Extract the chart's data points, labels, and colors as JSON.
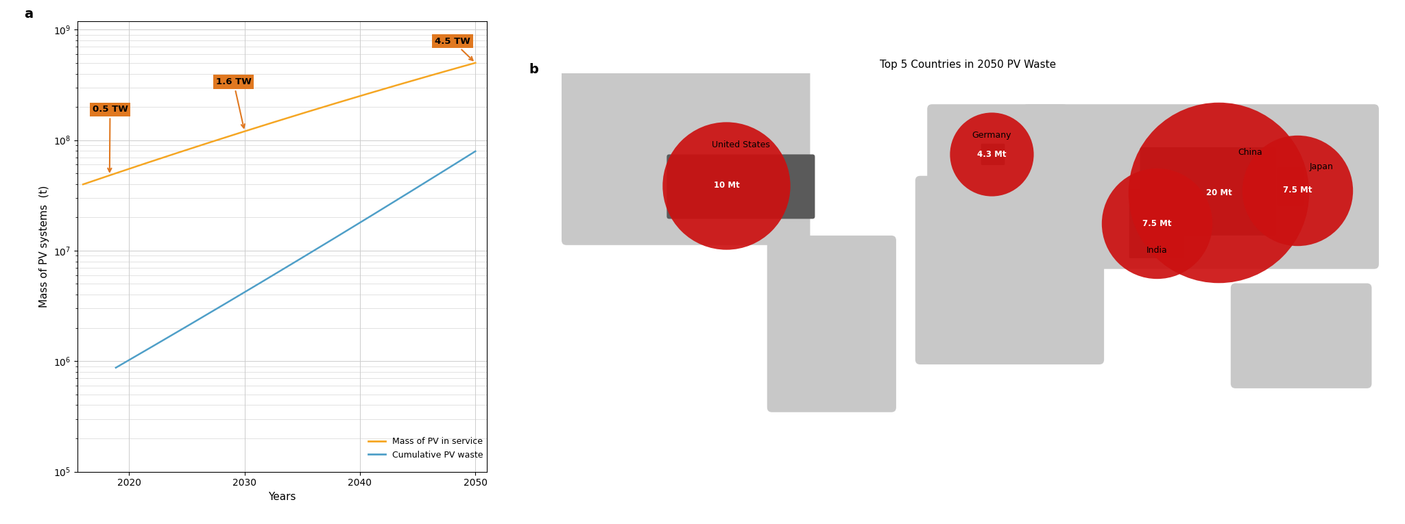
{
  "panel_a": {
    "xlabel": "Years",
    "ylabel": "Mass of PV systems  (t)",
    "pv_service_color": "#f5a623",
    "pv_waste_color": "#4f9fc8",
    "pv_service_label": "Mass of PV in service",
    "pv_waste_label": "Cumulative PV waste",
    "xticks": [
      2020,
      2030,
      2040,
      2050
    ],
    "annotation_bbox_color": "#e07820"
  },
  "panel_b": {
    "title": "Top 5 Countries in 2050 PV Waste",
    "countries": [
      {
        "name": "United States",
        "lon": -101,
        "lat": 38,
        "value": 10,
        "label": "10 Mt",
        "name_lon": -95,
        "name_lat": 53
      },
      {
        "name": "Germany",
        "lon": 10,
        "lat": 51,
        "value": 4.3,
        "label": "4.3 Mt",
        "name_lon": 10,
        "name_lat": 57
      },
      {
        "name": "India",
        "lon": 79,
        "lat": 22,
        "value": 7.5,
        "label": "7.5 Mt",
        "name_lon": 79,
        "name_lat": 9
      },
      {
        "name": "China",
        "lon": 105,
        "lat": 35,
        "value": 20,
        "label": "20 Mt",
        "name_lon": 118,
        "name_lat": 50
      },
      {
        "name": "Japan",
        "lon": 138,
        "lat": 36,
        "value": 7.5,
        "label": "7.5 Mt",
        "name_lon": 148,
        "name_lat": 44
      }
    ],
    "highlight_names": [
      "United States of America",
      "Germany",
      "India",
      "China",
      "Japan"
    ],
    "bubble_color": "#cc1111",
    "map_land_color": "#c8c8c8",
    "highlight_color": "#5a5a5a",
    "ocean_color": "#ffffff",
    "border_color": "#ffffff"
  }
}
